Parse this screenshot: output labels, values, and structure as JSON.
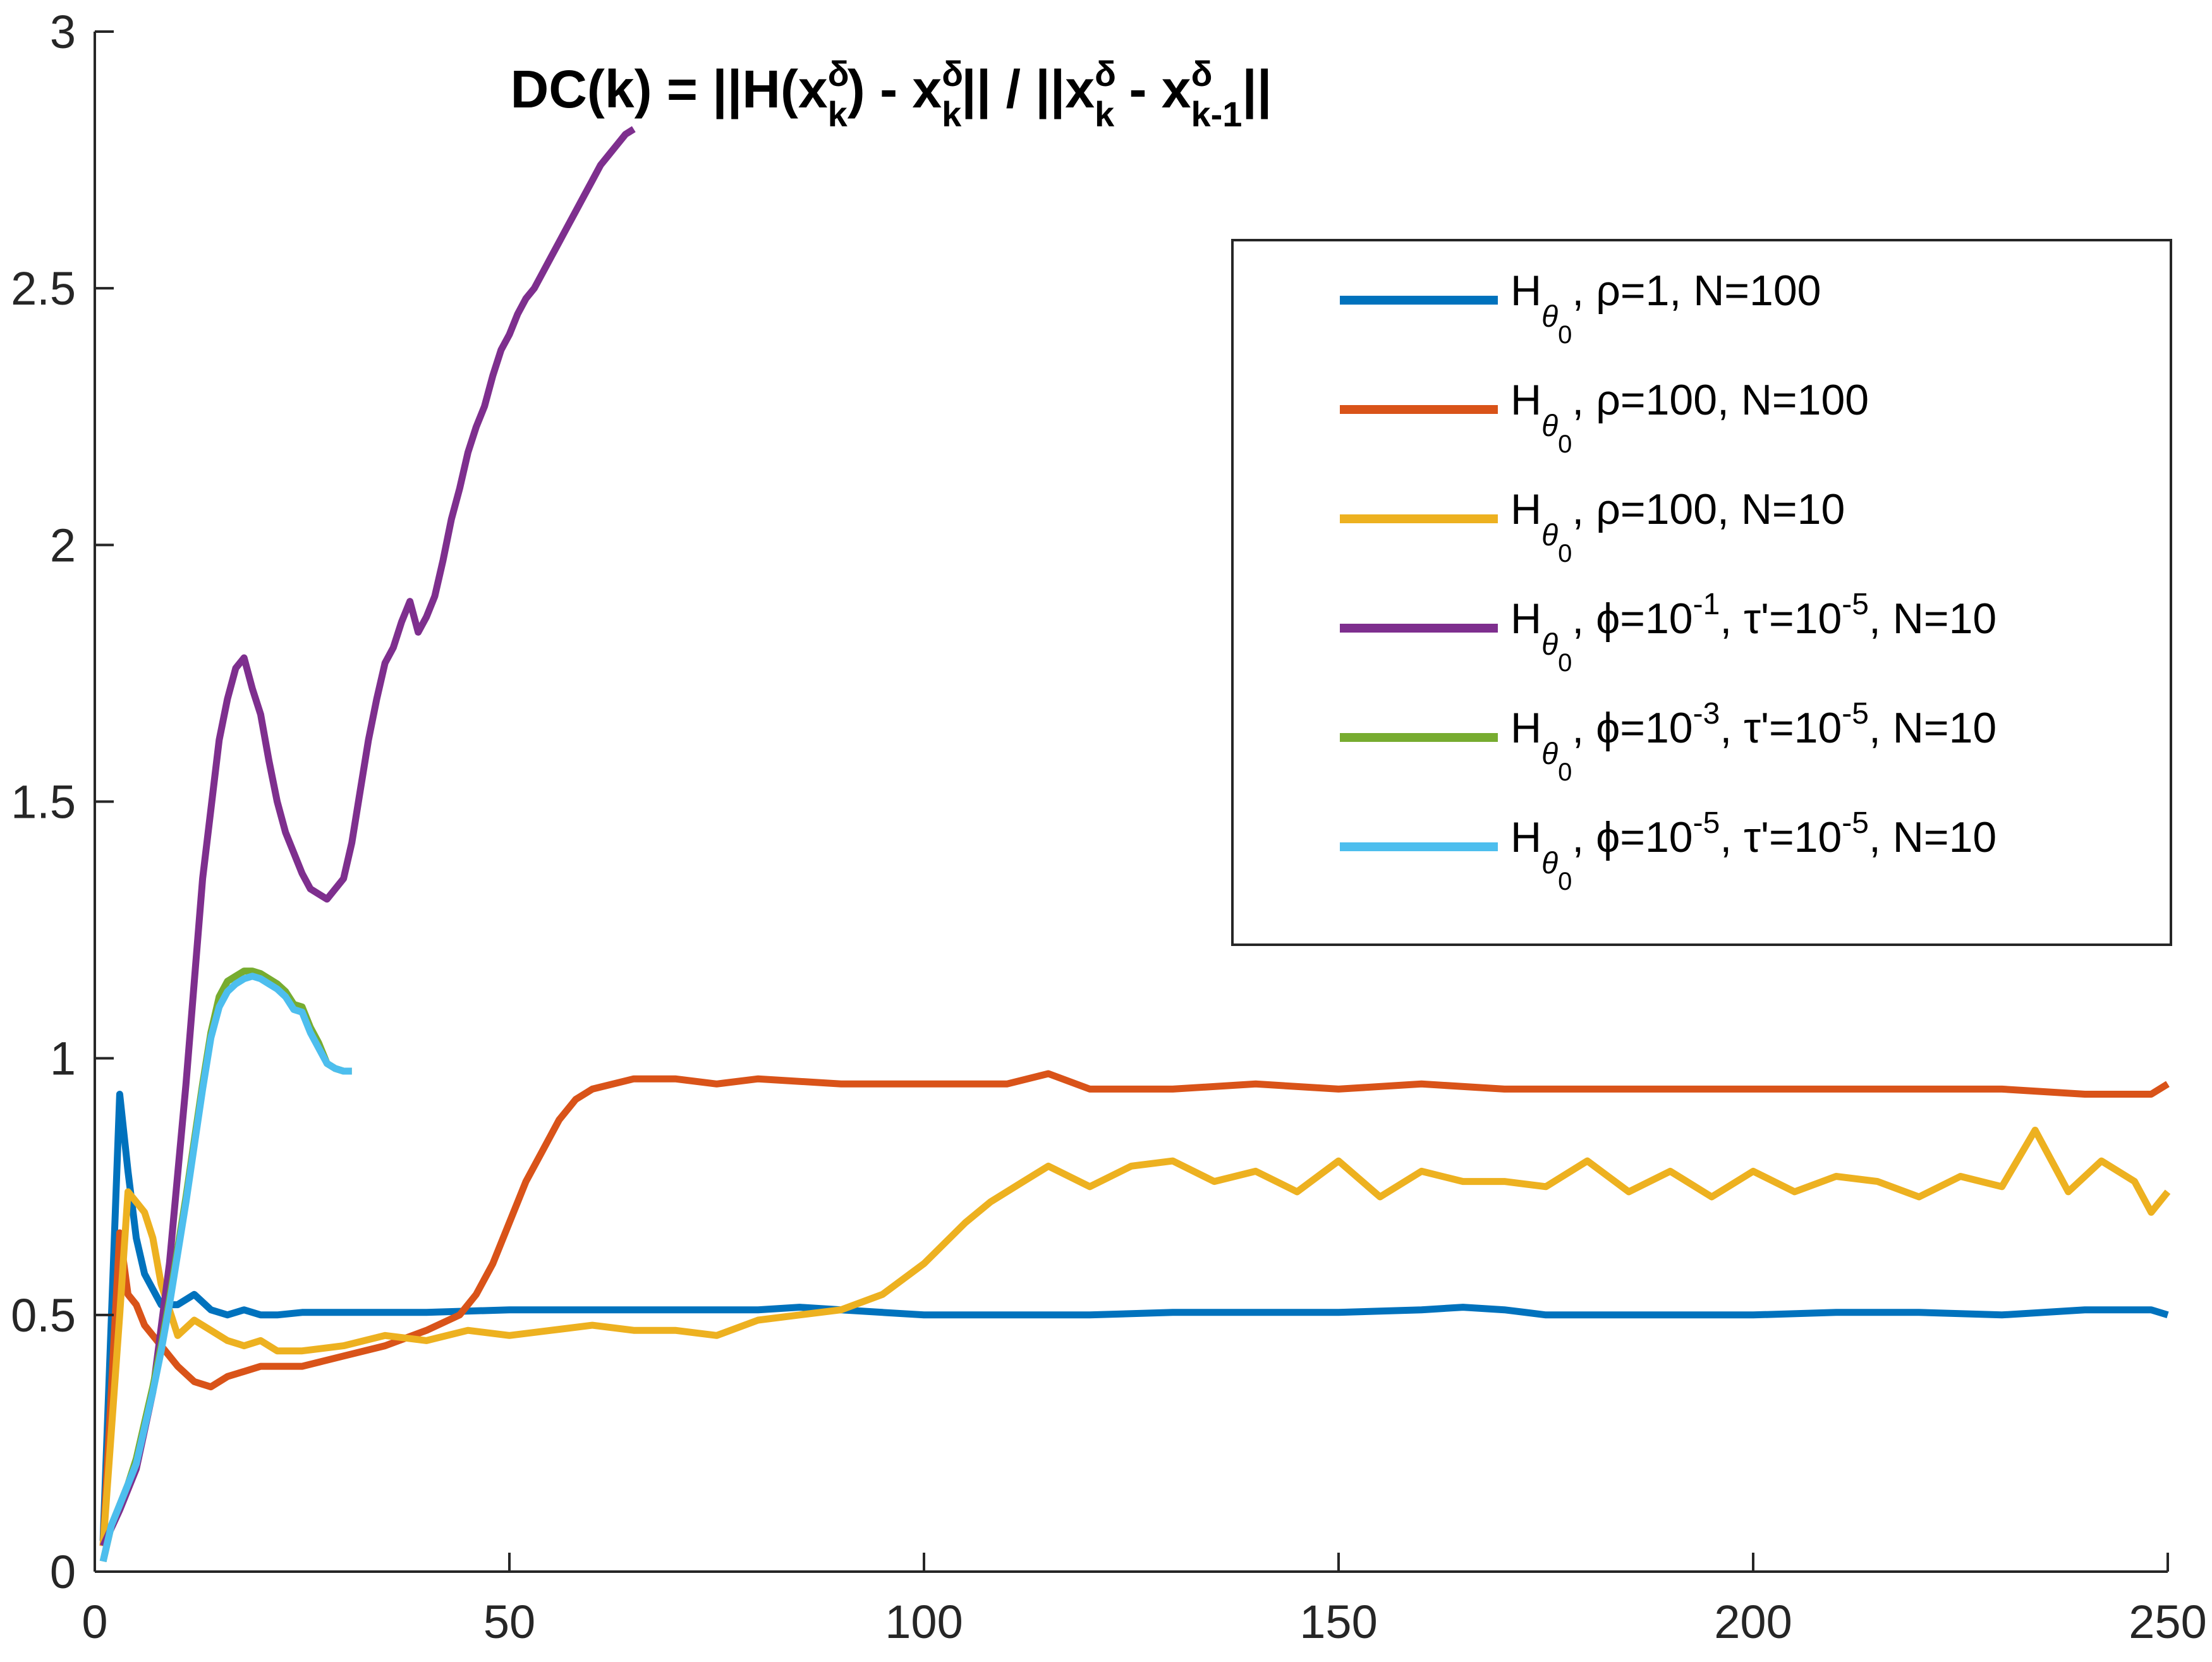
{
  "chart_data": {
    "type": "line",
    "title": "DC(k) = ||H(x_k^δ) - x_k^δ|| / ||x_k^δ - x_{k-1}^δ||",
    "title_parts": {
      "prefix": "DC(k) = ||H(x",
      "sup": "δ",
      "sub": "k",
      "mid": ") - x",
      "mid2": "|| / ||x",
      "mid3": " - x",
      "sub2": "k-1",
      "suffix": "||"
    },
    "xlabel": "",
    "ylabel": "",
    "xlim": [
      0,
      250
    ],
    "ylim": [
      0,
      3
    ],
    "xticks": [
      "0",
      "50",
      "100",
      "150",
      "200",
      "250"
    ],
    "yticks": [
      "0",
      "0.5",
      "1",
      "1.5",
      "2",
      "2.5",
      "3"
    ],
    "grid": false,
    "legend_placement": "top-right",
    "series": [
      {
        "name": "H_θ0, ρ=1, N=100",
        "legend": {
          "main": "H",
          "sub": "θ",
          "subsub": "0",
          "rest": ", ρ=1, N=100"
        },
        "color": "#0072BD",
        "x": [
          1,
          3,
          4,
          5,
          6,
          7,
          8,
          10,
          12,
          14,
          16,
          18,
          20,
          22,
          25,
          30,
          40,
          50,
          60,
          70,
          80,
          85,
          90,
          95,
          100,
          110,
          120,
          130,
          140,
          150,
          160,
          165,
          170,
          175,
          180,
          190,
          200,
          210,
          220,
          230,
          240,
          248,
          250
        ],
        "y": [
          0.06,
          0.93,
          0.78,
          0.65,
          0.58,
          0.55,
          0.52,
          0.52,
          0.54,
          0.51,
          0.5,
          0.51,
          0.5,
          0.5,
          0.505,
          0.505,
          0.505,
          0.51,
          0.51,
          0.51,
          0.51,
          0.515,
          0.51,
          0.505,
          0.5,
          0.5,
          0.5,
          0.505,
          0.505,
          0.505,
          0.51,
          0.515,
          0.51,
          0.5,
          0.5,
          0.5,
          0.5,
          0.505,
          0.505,
          0.5,
          0.51,
          0.51,
          0.5
        ]
      },
      {
        "name": "H_θ0, ρ=100, N=100",
        "legend": {
          "main": "H",
          "sub": "θ",
          "subsub": "0",
          "rest": ", ρ=100, N=100"
        },
        "color": "#D95319",
        "x": [
          1,
          3,
          4,
          5,
          6,
          8,
          10,
          12,
          14,
          16,
          18,
          20,
          25,
          30,
          35,
          40,
          44,
          46,
          48,
          50,
          52,
          54,
          56,
          58,
          60,
          65,
          70,
          75,
          80,
          90,
          100,
          110,
          115,
          120,
          130,
          140,
          150,
          160,
          170,
          180,
          190,
          200,
          210,
          220,
          230,
          240,
          248,
          250
        ],
        "y": [
          0.05,
          0.66,
          0.54,
          0.52,
          0.48,
          0.44,
          0.4,
          0.37,
          0.36,
          0.38,
          0.39,
          0.4,
          0.4,
          0.42,
          0.44,
          0.47,
          0.5,
          0.54,
          0.6,
          0.68,
          0.76,
          0.82,
          0.88,
          0.92,
          0.94,
          0.96,
          0.96,
          0.95,
          0.96,
          0.95,
          0.95,
          0.95,
          0.97,
          0.94,
          0.94,
          0.95,
          0.94,
          0.95,
          0.94,
          0.94,
          0.94,
          0.94,
          0.94,
          0.94,
          0.94,
          0.93,
          0.93,
          0.95
        ]
      },
      {
        "name": "H_θ0, ρ=100, N=10",
        "legend": {
          "main": "H",
          "sub": "θ",
          "subsub": "0",
          "rest": ", ρ=100, N=10"
        },
        "color": "#EDB120",
        "x": [
          1,
          3,
          4,
          5,
          6,
          7,
          8,
          10,
          12,
          14,
          16,
          18,
          20,
          22,
          25,
          30,
          35,
          40,
          45,
          50,
          55,
          60,
          65,
          70,
          75,
          80,
          85,
          90,
          95,
          100,
          105,
          108,
          112,
          115,
          120,
          125,
          130,
          135,
          140,
          145,
          150,
          155,
          160,
          165,
          170,
          175,
          180,
          185,
          190,
          195,
          200,
          205,
          210,
          215,
          220,
          225,
          230,
          234,
          238,
          242,
          246,
          248,
          250
        ],
        "y": [
          0.05,
          0.5,
          0.74,
          0.72,
          0.7,
          0.65,
          0.56,
          0.46,
          0.49,
          0.47,
          0.45,
          0.44,
          0.45,
          0.43,
          0.43,
          0.44,
          0.46,
          0.45,
          0.47,
          0.46,
          0.47,
          0.48,
          0.47,
          0.47,
          0.46,
          0.49,
          0.5,
          0.51,
          0.54,
          0.6,
          0.68,
          0.72,
          0.76,
          0.79,
          0.75,
          0.79,
          0.8,
          0.76,
          0.78,
          0.74,
          0.8,
          0.73,
          0.78,
          0.76,
          0.76,
          0.75,
          0.8,
          0.74,
          0.78,
          0.73,
          0.78,
          0.74,
          0.77,
          0.76,
          0.73,
          0.77,
          0.75,
          0.86,
          0.74,
          0.8,
          0.76,
          0.7,
          0.74
        ]
      },
      {
        "name": "H_θ0, ϕ=10^-1, τ'=10^-5, N=10",
        "legend": {
          "main": "H",
          "sub": "θ",
          "subsub": "0",
          "rest": ", ϕ=10",
          "e1": "-1",
          "rest2": ", τ'=10",
          "e2": "-5",
          "rest3": ", N=10"
        },
        "color": "#7E2F8E",
        "x": [
          1,
          3,
          5,
          7,
          9,
          11,
          13,
          15,
          16,
          17,
          18,
          19,
          20,
          21,
          22,
          23,
          24,
          25,
          26,
          27,
          28,
          29,
          30,
          31,
          32,
          33,
          34,
          35,
          36,
          37,
          38,
          39,
          40,
          41,
          42,
          43,
          44,
          45,
          46,
          47,
          48,
          49,
          50,
          51,
          52,
          53,
          54,
          55,
          56,
          57,
          58,
          59,
          60,
          61,
          62,
          63,
          64,
          65
        ],
        "y": [
          0.05,
          0.12,
          0.2,
          0.35,
          0.6,
          0.95,
          1.35,
          1.62,
          1.7,
          1.76,
          1.78,
          1.72,
          1.67,
          1.58,
          1.5,
          1.44,
          1.4,
          1.36,
          1.33,
          1.32,
          1.31,
          1.33,
          1.35,
          1.42,
          1.52,
          1.62,
          1.7,
          1.77,
          1.8,
          1.85,
          1.89,
          1.83,
          1.86,
          1.9,
          1.97,
          2.05,
          2.11,
          2.18,
          2.23,
          2.27,
          2.33,
          2.38,
          2.41,
          2.45,
          2.48,
          2.5,
          2.53,
          2.56,
          2.59,
          2.62,
          2.65,
          2.68,
          2.71,
          2.74,
          2.76,
          2.78,
          2.8,
          2.81
        ]
      },
      {
        "name": "H_θ0, ϕ=10^-3, τ'=10^-5, N=10",
        "legend": {
          "main": "H",
          "sub": "θ",
          "subsub": "0",
          "rest": ", ϕ=10",
          "e1": "-3",
          "rest2": ", τ'=10",
          "e2": "-5",
          "rest3": ", N=10"
        },
        "color": "#77AC30",
        "x": [
          1,
          2,
          3,
          4,
          5,
          6,
          7,
          8,
          9,
          10,
          11,
          12,
          13,
          14,
          15,
          16,
          17,
          18,
          19,
          20,
          21,
          22,
          23,
          24,
          25,
          26,
          27,
          28,
          29,
          30,
          31
        ],
        "y": [
          0.02,
          0.09,
          0.13,
          0.17,
          0.22,
          0.29,
          0.36,
          0.44,
          0.53,
          0.63,
          0.73,
          0.84,
          0.95,
          1.05,
          1.12,
          1.15,
          1.16,
          1.17,
          1.17,
          1.165,
          1.155,
          1.145,
          1.13,
          1.105,
          1.1,
          1.06,
          1.03,
          0.99,
          0.98,
          0.975,
          0.975
        ]
      },
      {
        "name": "H_θ0, ϕ=10^-5, τ'=10^-5, N=10",
        "legend": {
          "main": "H",
          "sub": "θ",
          "subsub": "0",
          "rest": ", ϕ=10",
          "e1": "-5",
          "rest2": ", τ'=10",
          "e2": "-5",
          "rest3": ", N=10"
        },
        "color": "#4DBEEE",
        "x": [
          1,
          2,
          3,
          4,
          5,
          6,
          7,
          8,
          9,
          10,
          11,
          12,
          13,
          14,
          15,
          16,
          17,
          18,
          19,
          20,
          21,
          22,
          23,
          24,
          25,
          26,
          27,
          28,
          29,
          30,
          31
        ],
        "y": [
          0.02,
          0.09,
          0.13,
          0.17,
          0.21,
          0.28,
          0.35,
          0.43,
          0.52,
          0.62,
          0.72,
          0.83,
          0.94,
          1.04,
          1.1,
          1.13,
          1.145,
          1.155,
          1.16,
          1.155,
          1.145,
          1.135,
          1.12,
          1.095,
          1.09,
          1.05,
          1.02,
          0.99,
          0.98,
          0.975,
          0.975
        ]
      }
    ]
  }
}
